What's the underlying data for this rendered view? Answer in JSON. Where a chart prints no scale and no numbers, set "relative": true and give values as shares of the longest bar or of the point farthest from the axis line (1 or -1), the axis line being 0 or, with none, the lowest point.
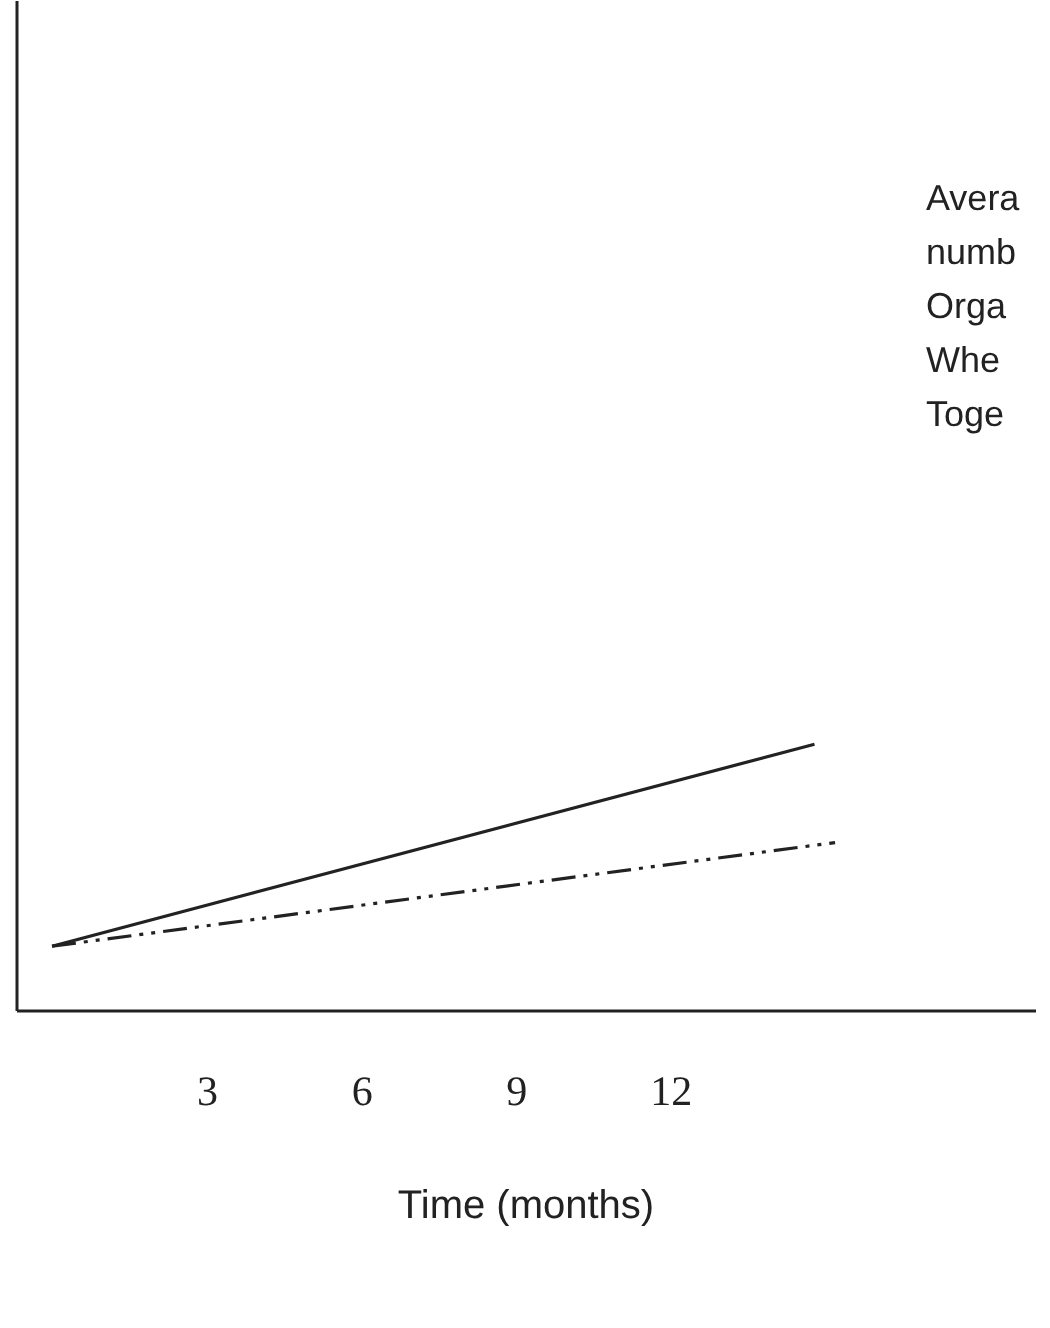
{
  "chart_data": {
    "type": "line",
    "relative": true,
    "xlabel": "Time (months)",
    "xlim": [
      -0.7,
      19.1
    ],
    "xticks": [
      3,
      6,
      9,
      12
    ],
    "grid": false,
    "marker": "none",
    "annotations": [
      "Avera",
      "numb",
      "Orga",
      "Whe",
      "Toge"
    ],
    "series": [
      {
        "color": "#222222",
        "line_style": "solid",
        "x": [
          0,
          14.8
        ],
        "values": [
          0.24,
          1
        ]
      },
      {
        "color": "#222222",
        "line_style": "dashed",
        "x": [
          0,
          15.2
        ],
        "values": [
          0.24,
          0.63
        ]
      }
    ]
  }
}
